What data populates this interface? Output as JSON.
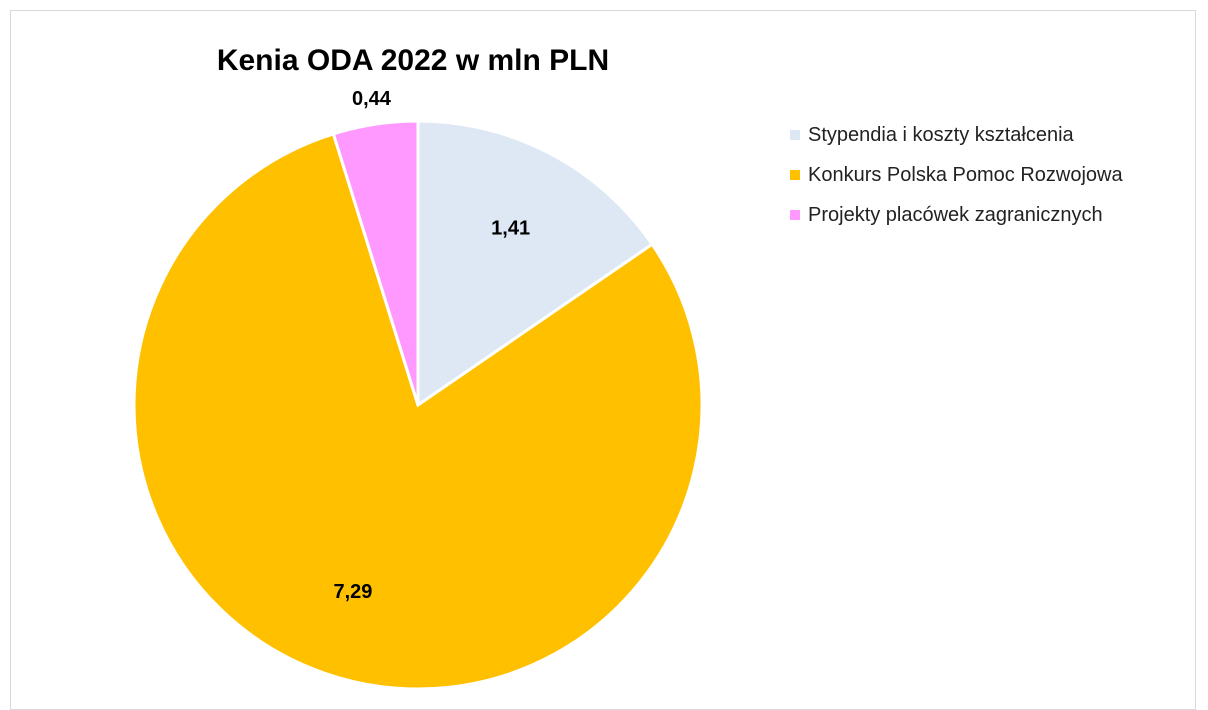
{
  "chart_data": {
    "type": "pie",
    "title": "Kenia ODA 2022 w mln PLN",
    "categories": [
      "Stypendia i koszty kształcenia",
      "Konkurs Polska Pomoc Rozwojowa",
      "Projekty placówek zagranicznych"
    ],
    "values": [
      1.41,
      7.29,
      0.44
    ],
    "value_labels": [
      "1,41",
      "7,29",
      "0,44"
    ],
    "colors": [
      "#dde8f4",
      "#ffc000",
      "#ff99ff"
    ],
    "legend": "right"
  }
}
